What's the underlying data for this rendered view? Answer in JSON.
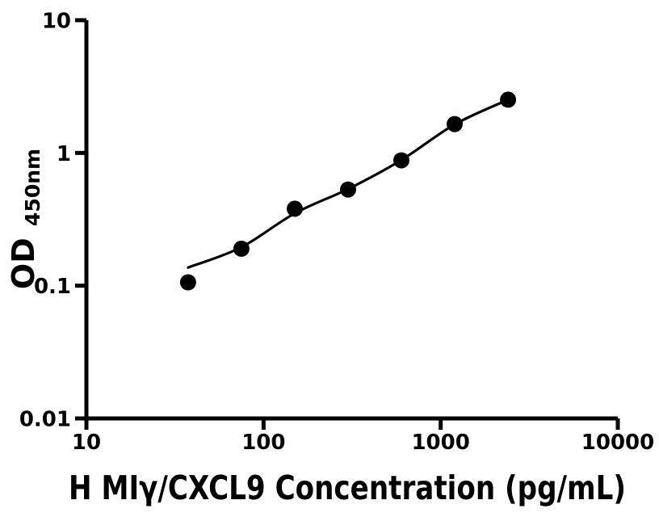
{
  "chart_data": {
    "type": "scatter",
    "title": "",
    "xlabel": "H MIγ/CXCL9 Concentration (pg/mL)",
    "ylabel": "OD450nm",
    "ylabel_base": "OD",
    "ylabel_sub": "450nm",
    "x_scale": "log10",
    "y_scale": "log10",
    "xlim": [
      10,
      10000
    ],
    "ylim": [
      0.01,
      10
    ],
    "grid": false,
    "legend": false,
    "x_ticks": [
      {
        "label": "10",
        "value": 10
      },
      {
        "label": "100",
        "value": 100
      },
      {
        "label": "1000",
        "value": 1000
      },
      {
        "label": "10000",
        "value": 10000
      }
    ],
    "y_ticks": [
      {
        "label": "10",
        "value": 10
      },
      {
        "label": "1",
        "value": 1
      },
      {
        "label": "0.1",
        "value": 0.1
      },
      {
        "label": "0.01",
        "value": 0.01
      }
    ],
    "series": [
      {
        "name": "standard-curve-points",
        "marker": "filled-circle",
        "x": [
          37.5,
          75,
          150,
          300,
          600,
          1200,
          2400
        ],
        "y": [
          0.106,
          0.19,
          0.38,
          0.53,
          0.88,
          1.65,
          2.52
        ]
      }
    ],
    "fit_curve": {
      "name": "fitted-standard-curve",
      "x": [
        37.5,
        75,
        150,
        300,
        600,
        1200,
        2400
      ],
      "y": [
        0.137,
        0.195,
        0.351,
        0.535,
        0.885,
        1.64,
        2.52
      ]
    },
    "colors": {
      "marker": "#000000",
      "line": "#000000",
      "axis": "#000000",
      "text": "#000000",
      "background": "#ffffff"
    }
  }
}
